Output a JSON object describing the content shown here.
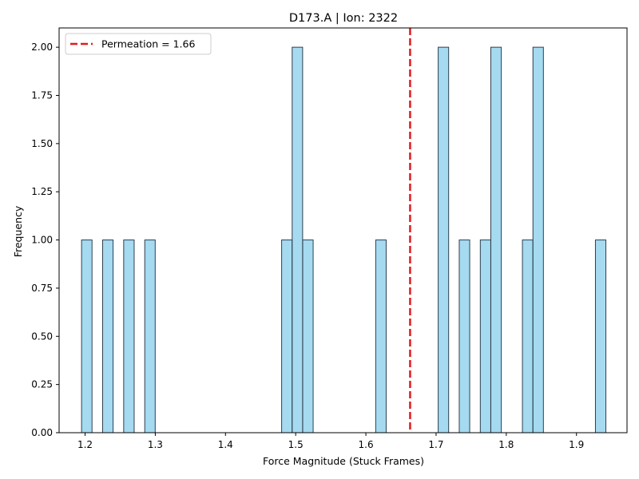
{
  "chart_data": {
    "type": "bar",
    "title": "D173.A | Ion: 2322",
    "xlabel": "Force Magnitude (Stuck Frames)",
    "ylabel": "Frequency",
    "xlim": [
      1.163,
      1.972
    ],
    "ylim": [
      0,
      2.1
    ],
    "x_ticks": [
      "1.2",
      "1.3",
      "1.4",
      "1.5",
      "1.6",
      "1.7",
      "1.8",
      "1.9"
    ],
    "y_ticks": [
      "0.00",
      "0.25",
      "0.50",
      "0.75",
      "1.00",
      "1.25",
      "1.50",
      "1.75",
      "2.00"
    ],
    "bin_width": 0.0149,
    "bins": [
      {
        "x": 1.195,
        "count": 1
      },
      {
        "x": 1.225,
        "count": 1
      },
      {
        "x": 1.255,
        "count": 1
      },
      {
        "x": 1.285,
        "count": 1
      },
      {
        "x": 1.48,
        "count": 1
      },
      {
        "x": 1.495,
        "count": 2
      },
      {
        "x": 1.51,
        "count": 1
      },
      {
        "x": 1.614,
        "count": 1
      },
      {
        "x": 1.703,
        "count": 2
      },
      {
        "x": 1.733,
        "count": 1
      },
      {
        "x": 1.763,
        "count": 1
      },
      {
        "x": 1.778,
        "count": 2
      },
      {
        "x": 1.823,
        "count": 1
      },
      {
        "x": 1.838,
        "count": 2
      },
      {
        "x": 1.927,
        "count": 1
      }
    ],
    "reference_line": {
      "x": 1.663,
      "label": "Permeation = 1.66",
      "color": "#e41a1c"
    },
    "legend": {
      "entries": [
        "Permeation = 1.66"
      ],
      "placement": "top-left"
    },
    "colors": {
      "bar_fill": "#87ceeb",
      "bar_edge": "#2f3f4f"
    },
    "grid": false
  }
}
